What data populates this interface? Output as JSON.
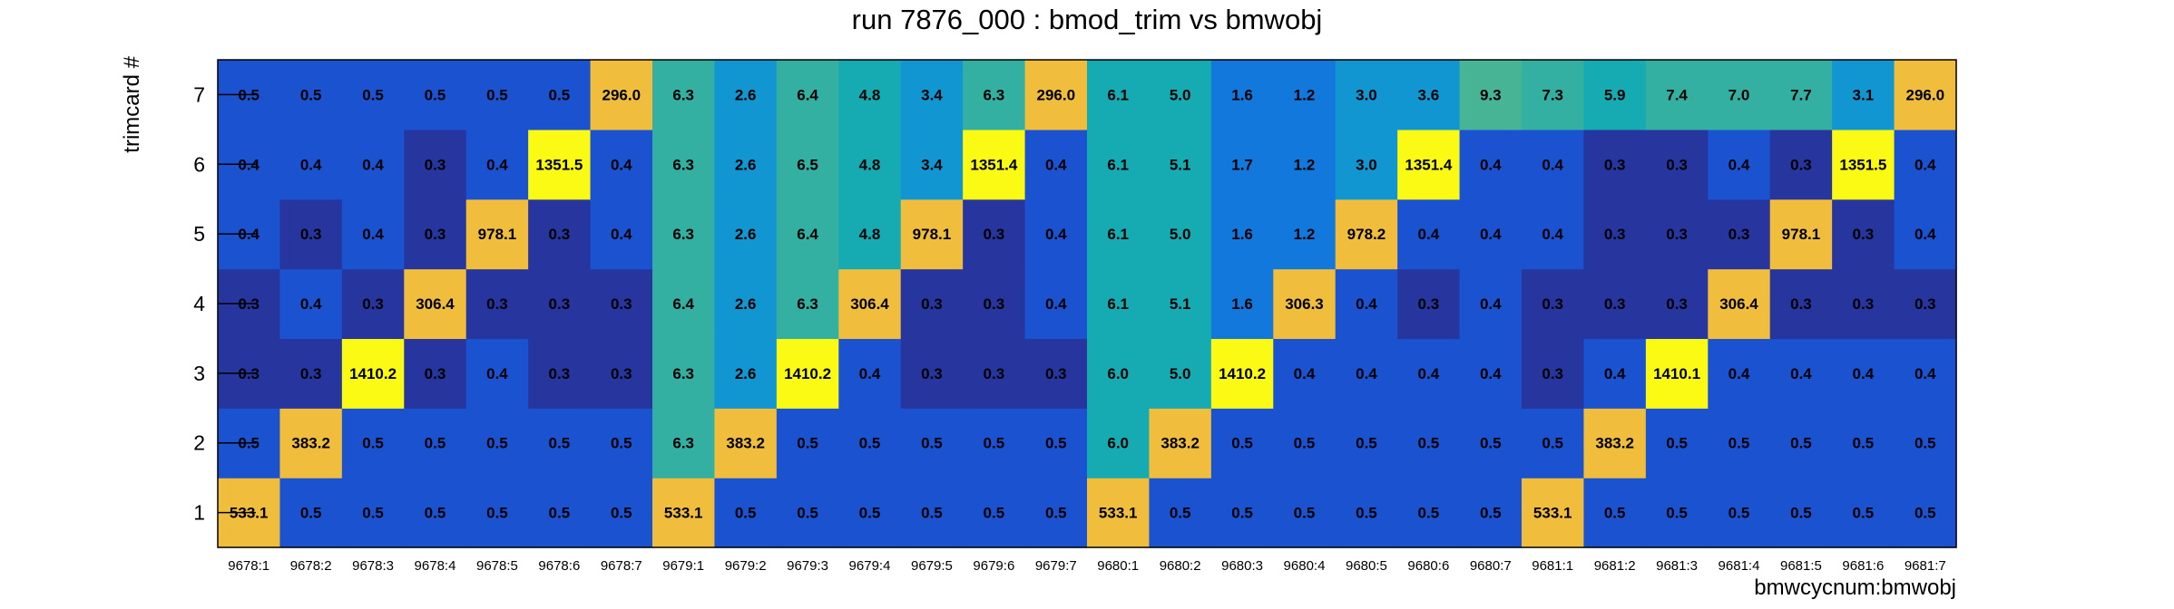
{
  "chart_data": {
    "type": "heatmap",
    "title": "run 7876_000 : bmod_trim vs bmwobj",
    "xlabel": "bmwcycnum:bmwobj",
    "ylabel": "trimcard #",
    "x_categories": [
      "9678:1",
      "9678:2",
      "9678:3",
      "9678:4",
      "9678:5",
      "9678:6",
      "9678:7",
      "9679:1",
      "9679:2",
      "9679:3",
      "9679:4",
      "9679:5",
      "9679:6",
      "9679:7",
      "9680:1",
      "9680:2",
      "9680:3",
      "9680:4",
      "9680:5",
      "9680:6",
      "9680:7",
      "9681:1",
      "9681:2",
      "9681:3",
      "9681:4",
      "9681:5",
      "9681:6",
      "9681:7"
    ],
    "y_categories": [
      "1",
      "2",
      "3",
      "4",
      "5",
      "6",
      "7"
    ],
    "values_display": [
      [
        "533.1",
        "0.5",
        "0.5",
        "0.5",
        "0.5",
        "0.5",
        "0.5",
        "533.1",
        "0.5",
        "0.5",
        "0.5",
        "0.5",
        "0.5",
        "0.5",
        "533.1",
        "0.5",
        "0.5",
        "0.5",
        "0.5",
        "0.5",
        "0.5",
        "533.1",
        "0.5",
        "0.5",
        "0.5",
        "0.5",
        "0.5",
        "0.5"
      ],
      [
        "0.5",
        "383.2",
        "0.5",
        "0.5",
        "0.5",
        "0.5",
        "0.5",
        "6.3",
        "383.2",
        "0.5",
        "0.5",
        "0.5",
        "0.5",
        "0.5",
        "6.0",
        "383.2",
        "0.5",
        "0.5",
        "0.5",
        "0.5",
        "0.5",
        "0.5",
        "383.2",
        "0.5",
        "0.5",
        "0.5",
        "0.5",
        "0.5"
      ],
      [
        "0.3",
        "0.3",
        "1410.2",
        "0.3",
        "0.4",
        "0.3",
        "0.3",
        "6.3",
        "2.6",
        "1410.2",
        "0.4",
        "0.3",
        "0.3",
        "0.3",
        "6.0",
        "5.0",
        "1410.2",
        "0.4",
        "0.4",
        "0.4",
        "0.4",
        "0.3",
        "0.4",
        "1410.1",
        "0.4",
        "0.4",
        "0.4",
        "0.4"
      ],
      [
        "0.3",
        "0.4",
        "0.3",
        "306.4",
        "0.3",
        "0.3",
        "0.3",
        "6.4",
        "2.6",
        "6.3",
        "306.4",
        "0.3",
        "0.3",
        "0.4",
        "6.1",
        "5.1",
        "1.6",
        "306.3",
        "0.4",
        "0.3",
        "0.4",
        "0.3",
        "0.3",
        "0.3",
        "306.4",
        "0.3",
        "0.3",
        "0.3"
      ],
      [
        "0.4",
        "0.3",
        "0.4",
        "0.3",
        "978.1",
        "0.3",
        "0.4",
        "6.3",
        "2.6",
        "6.4",
        "4.8",
        "978.1",
        "0.3",
        "0.4",
        "6.1",
        "5.0",
        "1.6",
        "1.2",
        "978.2",
        "0.4",
        "0.4",
        "0.4",
        "0.3",
        "0.3",
        "0.3",
        "978.1",
        "0.3",
        "0.4"
      ],
      [
        "0.4",
        "0.4",
        "0.4",
        "0.3",
        "0.4",
        "1351.5",
        "0.4",
        "6.3",
        "2.6",
        "6.5",
        "4.8",
        "3.4",
        "1351.4",
        "0.4",
        "6.1",
        "5.1",
        "1.7",
        "1.2",
        "3.0",
        "1351.4",
        "0.4",
        "0.4",
        "0.3",
        "0.3",
        "0.4",
        "0.3",
        "1351.5",
        "0.4"
      ],
      [
        "0.5",
        "0.5",
        "0.5",
        "0.5",
        "0.5",
        "0.5",
        "296.0",
        "6.3",
        "2.6",
        "6.4",
        "4.8",
        "3.4",
        "6.3",
        "296.0",
        "6.1",
        "5.0",
        "1.6",
        "1.2",
        "3.0",
        "3.6",
        "9.3",
        "7.3",
        "5.9",
        "7.4",
        "7.0",
        "7.7",
        "3.1",
        "296.0"
      ]
    ],
    "grid": false,
    "legend": "none"
  }
}
